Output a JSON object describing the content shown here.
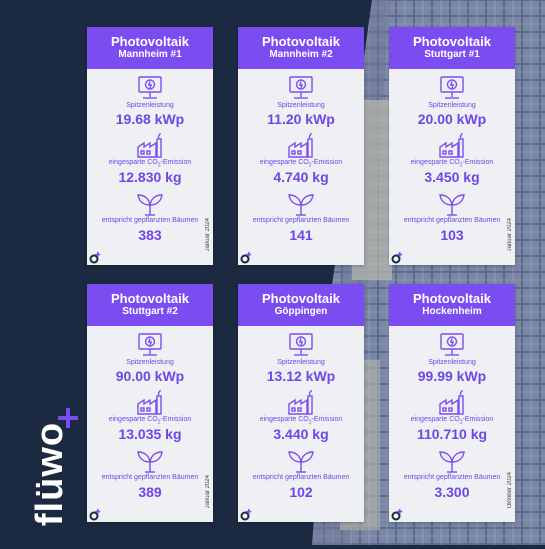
{
  "brand": {
    "logo_text": "flüwo"
  },
  "colors": {
    "navy": "#1b2a40",
    "accent": "#7b4df0",
    "text_purple": "#6f46e8",
    "card_bg": "#eef0f3"
  },
  "labels": {
    "peak": "Spitzenleistung",
    "co2_prefix": "eingesparte CO",
    "co2_sub": "2",
    "co2_suffix": "-Emission",
    "trees": "entspricht gepflanzten Bäumen"
  },
  "cards": [
    {
      "title": "Photovoltaik",
      "subtitle": "Mannheim #1",
      "peak": "19.68 kWp",
      "co2": "12.830 kg",
      "trees": "383",
      "date": "Januar 2024"
    },
    {
      "title": "Photovoltaik",
      "subtitle": "Mannheim #2",
      "peak": "11.20 kWp",
      "co2": "4.740 kg",
      "trees": "141",
      "date": ""
    },
    {
      "title": "Photovoltaik",
      "subtitle": "Stuttgart #1",
      "peak": "20.00 kWp",
      "co2": "3.450 kg",
      "trees": "103",
      "date": "Januar 2024"
    },
    {
      "title": "Photovoltaik",
      "subtitle": "Stuttgart  #2",
      "peak": "90.00 kWp",
      "co2": "13.035 kg",
      "trees": "389",
      "date": "Januar 2024"
    },
    {
      "title": "Photovoltaik",
      "subtitle": "Göppingen",
      "peak": "13.12 kWp",
      "co2": "3.440 kg",
      "trees": "102",
      "date": ""
    },
    {
      "title": "Photovoltaik",
      "subtitle": "Hockenheim",
      "peak": "99.99 kWp",
      "co2": "110.710 kg",
      "trees": "3.300",
      "date": "Oktober 2024"
    }
  ]
}
